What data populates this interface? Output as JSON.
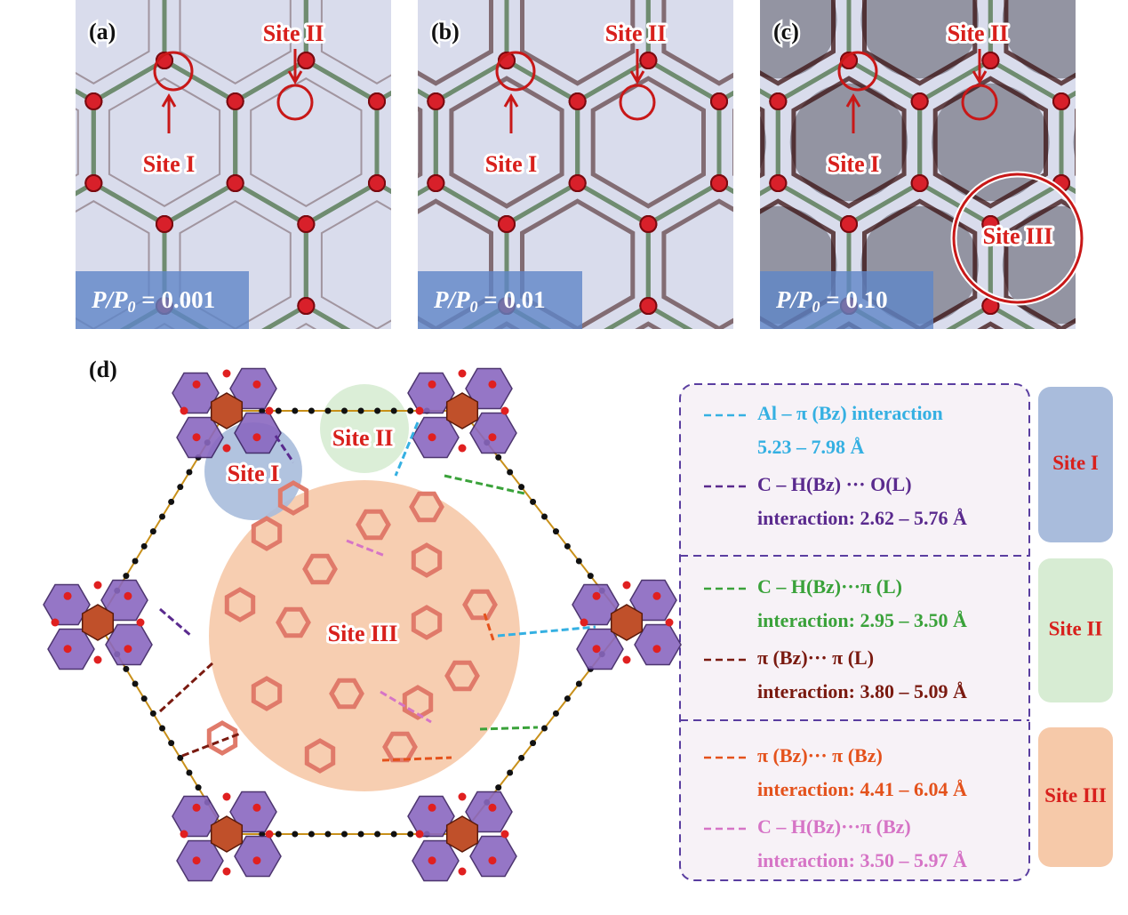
{
  "panels": [
    {
      "label": "(a)",
      "site_labels": [
        "Site I",
        "Site II"
      ],
      "pressure": {
        "symbol": "P/P",
        "sub": "0",
        "value": " = 0.001"
      }
    },
    {
      "label": "(b)",
      "site_labels": [
        "Site I",
        "Site II"
      ],
      "pressure": {
        "symbol": "P/P",
        "sub": "0",
        "value": " = 0.01"
      }
    },
    {
      "label": "(c)",
      "site_labels": [
        "Site I",
        "Site II",
        "Site III"
      ],
      "pressure": {
        "symbol": "P/P",
        "sub": "0",
        "value": " = 0.10"
      }
    }
  ],
  "structure": {
    "label": "(d)",
    "site_labels": [
      "Site I",
      "Site II",
      "Site III"
    ]
  },
  "legend": [
    {
      "site": "Site I",
      "color": "#a9bcdc",
      "entries": [
        {
          "label": "Al – π (Bz)  interaction",
          "detail": "5.23 – 7.98 Å",
          "color": "#35b0e2"
        },
        {
          "label": "C – H(Bz) ··· O(L)",
          "detail": "interaction: 2.62 – 5.76 Å",
          "color": "#5a2a8e"
        }
      ]
    },
    {
      "site": "Site II",
      "color": "#d7ecd3",
      "entries": [
        {
          "label": "C – H(Bz)···π (L)",
          "detail": "interaction: 2.95 – 3.50 Å",
          "color": "#3aa23a"
        },
        {
          "label": "π (Bz)··· π (L)",
          "detail": "interaction: 3.80 – 5.09 Å",
          "color": "#7a1a10"
        }
      ]
    },
    {
      "site": "Site III",
      "color": "#f6c9a9",
      "entries": [
        {
          "label": "π (Bz)··· π (Bz)",
          "detail": "interaction: 4.41 – 6.04 Å",
          "color": "#e4521c"
        },
        {
          "label": "C – H(Bz)···π (Bz)",
          "detail": "interaction: 3.50 – 5.97 Å",
          "color": "#d674c6"
        }
      ]
    }
  ]
}
